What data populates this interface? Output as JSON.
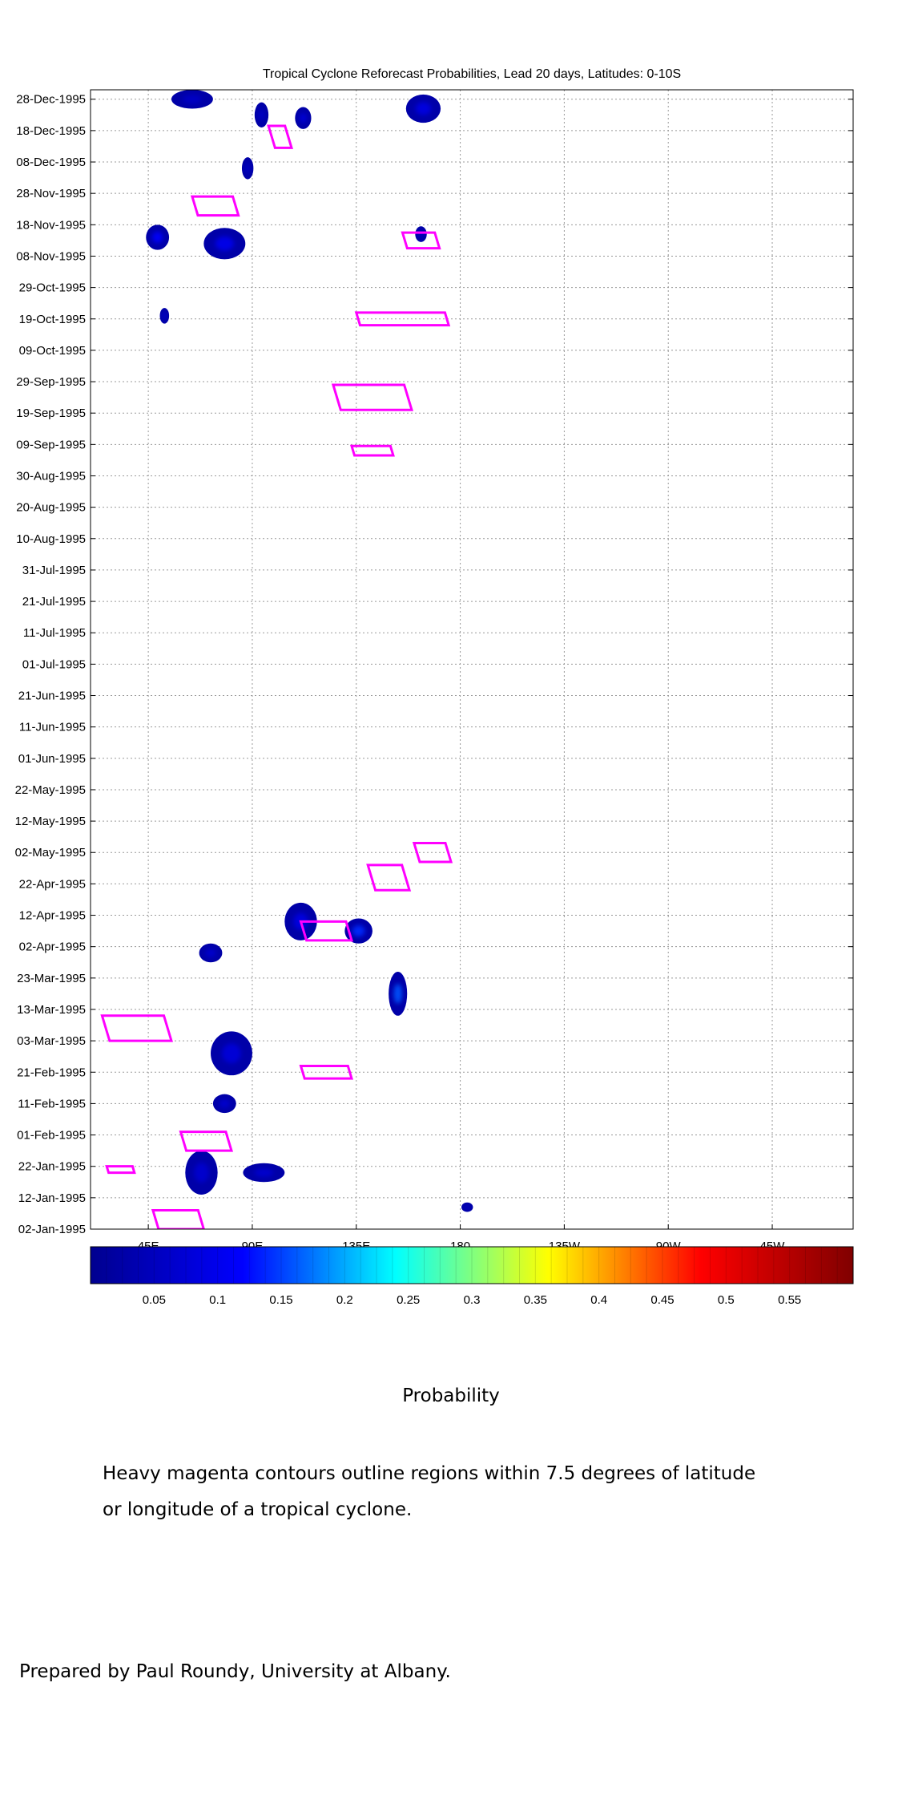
{
  "chart_data": {
    "type": "heatmap",
    "title": "Tropical Cyclone Reforecast Probabilities, Lead 20 days, Latitudes: 0-10S",
    "x_ticks": [
      {
        "lon": 45,
        "label": "45E"
      },
      {
        "lon": 90,
        "label": "90E"
      },
      {
        "lon": 135,
        "label": "135E"
      },
      {
        "lon": 180,
        "label": "180"
      },
      {
        "lon": 225,
        "label": "135W"
      },
      {
        "lon": 270,
        "label": "90W"
      },
      {
        "lon": 315,
        "label": "45W"
      }
    ],
    "xlim": [
      20,
      350
    ],
    "y_ticks": [
      {
        "day": 0,
        "label": "02-Jan-1995"
      },
      {
        "day": 10,
        "label": "12-Jan-1995"
      },
      {
        "day": 20,
        "label": "22-Jan-1995"
      },
      {
        "day": 30,
        "label": "01-Feb-1995"
      },
      {
        "day": 40,
        "label": "11-Feb-1995"
      },
      {
        "day": 50,
        "label": "21-Feb-1995"
      },
      {
        "day": 60,
        "label": "03-Mar-1995"
      },
      {
        "day": 70,
        "label": "13-Mar-1995"
      },
      {
        "day": 80,
        "label": "23-Mar-1995"
      },
      {
        "day": 90,
        "label": "02-Apr-1995"
      },
      {
        "day": 100,
        "label": "12-Apr-1995"
      },
      {
        "day": 110,
        "label": "22-Apr-1995"
      },
      {
        "day": 120,
        "label": "02-May-1995"
      },
      {
        "day": 130,
        "label": "12-May-1995"
      },
      {
        "day": 140,
        "label": "22-May-1995"
      },
      {
        "day": 150,
        "label": "01-Jun-1995"
      },
      {
        "day": 160,
        "label": "11-Jun-1995"
      },
      {
        "day": 170,
        "label": "21-Jun-1995"
      },
      {
        "day": 180,
        "label": "01-Jul-1995"
      },
      {
        "day": 190,
        "label": "11-Jul-1995"
      },
      {
        "day": 200,
        "label": "21-Jul-1995"
      },
      {
        "day": 210,
        "label": "31-Jul-1995"
      },
      {
        "day": 220,
        "label": "10-Aug-1995"
      },
      {
        "day": 230,
        "label": "20-Aug-1995"
      },
      {
        "day": 240,
        "label": "30-Aug-1995"
      },
      {
        "day": 250,
        "label": "09-Sep-1995"
      },
      {
        "day": 260,
        "label": "19-Sep-1995"
      },
      {
        "day": 270,
        "label": "29-Sep-1995"
      },
      {
        "day": 280,
        "label": "09-Oct-1995"
      },
      {
        "day": 290,
        "label": "19-Oct-1995"
      },
      {
        "day": 300,
        "label": "29-Oct-1995"
      },
      {
        "day": 310,
        "label": "08-Nov-1995"
      },
      {
        "day": 320,
        "label": "18-Nov-1995"
      },
      {
        "day": 330,
        "label": "28-Nov-1995"
      },
      {
        "day": 340,
        "label": "08-Dec-1995"
      },
      {
        "day": 350,
        "label": "18-Dec-1995"
      },
      {
        "day": 360,
        "label": "28-Dec-1995"
      }
    ],
    "ylim": [
      0,
      363
    ],
    "grid": true,
    "colorbar": {
      "min": 0.0,
      "max": 0.6,
      "ticks": [
        0.05,
        0.1,
        0.15,
        0.2,
        0.25,
        0.3,
        0.35,
        0.4,
        0.45,
        0.5,
        0.55
      ],
      "tick_labels": [
        "0.05",
        "0.1",
        "0.15",
        "0.2",
        "0.25",
        "0.3",
        "0.35",
        "0.4",
        "0.45",
        "0.5",
        "0.55"
      ],
      "colors": [
        "#00008f",
        "#0000ff",
        "#00ffff",
        "#ffff00",
        "#ff0000",
        "#800000"
      ],
      "label": "Probability"
    },
    "contour_color": "#ff00ff",
    "blob_color": "#0000a8",
    "probability_patches": [
      {
        "lon": 64,
        "day": 360,
        "w": 18,
        "h": 6,
        "p": 0.06
      },
      {
        "lon": 94,
        "day": 355,
        "w": 6,
        "h": 8,
        "p": 0.06
      },
      {
        "lon": 88,
        "day": 338,
        "w": 5,
        "h": 7,
        "p": 0.06
      },
      {
        "lon": 112,
        "day": 354,
        "w": 7,
        "h": 7,
        "p": 0.08
      },
      {
        "lon": 164,
        "day": 357,
        "w": 15,
        "h": 9,
        "p": 0.09
      },
      {
        "lon": 49,
        "day": 316,
        "w": 10,
        "h": 8,
        "p": 0.12
      },
      {
        "lon": 78,
        "day": 314,
        "w": 18,
        "h": 10,
        "p": 0.1
      },
      {
        "lon": 163,
        "day": 317,
        "w": 5,
        "h": 5,
        "p": 0.06
      },
      {
        "lon": 52,
        "day": 291,
        "w": 4,
        "h": 5,
        "p": 0.07
      },
      {
        "lon": 111,
        "day": 98,
        "w": 14,
        "h": 12,
        "p": 0.09
      },
      {
        "lon": 136,
        "day": 95,
        "w": 12,
        "h": 8,
        "p": 0.14
      },
      {
        "lon": 72,
        "day": 88,
        "w": 10,
        "h": 6,
        "p": 0.07
      },
      {
        "lon": 153,
        "day": 75,
        "w": 8,
        "h": 14,
        "p": 0.16
      },
      {
        "lon": 81,
        "day": 56,
        "w": 18,
        "h": 14,
        "p": 0.08
      },
      {
        "lon": 78,
        "day": 40,
        "w": 10,
        "h": 6,
        "p": 0.07
      },
      {
        "lon": 68,
        "day": 18,
        "w": 14,
        "h": 14,
        "p": 0.07
      },
      {
        "lon": 95,
        "day": 18,
        "w": 18,
        "h": 6,
        "p": 0.07
      },
      {
        "lon": 183,
        "day": 7,
        "w": 5,
        "h": 3,
        "p": 0.06
      }
    ],
    "contours": [
      {
        "lon": 74,
        "day": 326,
        "w": 20,
        "h": 6,
        "p": 0.05
      },
      {
        "lon": 163,
        "day": 315,
        "w": 16,
        "h": 5,
        "p": 0.05
      },
      {
        "lon": 102,
        "day": 348,
        "w": 10,
        "h": 7,
        "p": 0.05
      },
      {
        "lon": 155,
        "day": 290,
        "w": 40,
        "h": 4,
        "p": 0.05
      },
      {
        "lon": 142,
        "day": 265,
        "w": 34,
        "h": 8,
        "p": 0.05
      },
      {
        "lon": 142,
        "day": 248,
        "w": 18,
        "h": 3,
        "p": 0.05
      },
      {
        "lon": 149,
        "day": 112,
        "w": 18,
        "h": 8,
        "p": 0.05
      },
      {
        "lon": 168,
        "day": 120,
        "w": 16,
        "h": 6,
        "p": 0.05
      },
      {
        "lon": 122,
        "day": 95,
        "w": 22,
        "h": 6,
        "p": 0.05
      },
      {
        "lon": 40,
        "day": 64,
        "w": 30,
        "h": 8,
        "p": 0.05
      },
      {
        "lon": 122,
        "day": 50,
        "w": 22,
        "h": 4,
        "p": 0.05
      },
      {
        "lon": 70,
        "day": 28,
        "w": 22,
        "h": 6,
        "p": 0.05
      },
      {
        "lon": 33,
        "day": 19,
        "w": 12,
        "h": 2,
        "p": 0.05
      },
      {
        "lon": 58,
        "day": 3,
        "w": 22,
        "h": 6,
        "p": 0.05
      }
    ]
  },
  "colorbar_label": "Probability",
  "note_line_1": "Heavy magenta contours outline regions within 7.5 degrees of latitude",
  "note_line_2": "or longitude of a tropical cyclone.",
  "credit": "Prepared by Paul Roundy, University at Albany."
}
